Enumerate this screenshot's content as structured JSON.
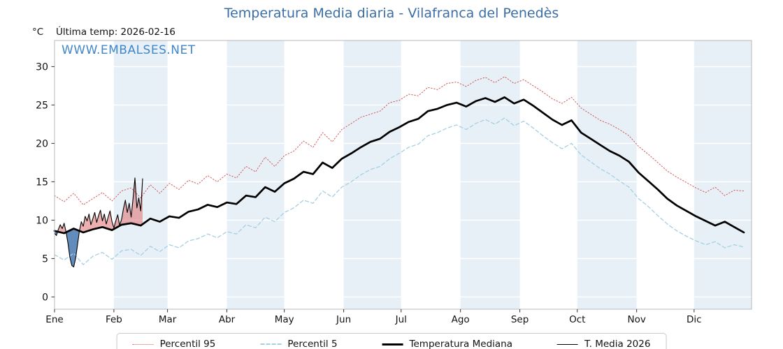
{
  "page": {
    "title": "Temperatura Media diaria - Vilafranca del Penedès",
    "title_color": "#3b6ea5",
    "unit_label": "°C",
    "last_temp_label": "Última temp: 2026-02-16",
    "watermark": "WWW.EMBALSES.NET",
    "watermark_color": "#3f87c9"
  },
  "chart_data": {
    "type": "line",
    "title": "Temperatura Media diaria - Vilafranca del Penedès",
    "xlabel": "",
    "ylabel": "°C",
    "ylim": [
      0,
      30
    ],
    "y_ticks": [
      0,
      5,
      10,
      15,
      20,
      25,
      30
    ],
    "x_tick_labels": [
      "Ene",
      "Feb",
      "Mar",
      "Abr",
      "May",
      "Jun",
      "Jul",
      "Ago",
      "Sep",
      "Oct",
      "Nov",
      "Dic"
    ],
    "month_start_days": [
      1,
      32,
      60,
      91,
      121,
      152,
      182,
      213,
      244,
      274,
      305,
      335
    ],
    "grid": true,
    "legend_position": "bottom",
    "band_color": "#e8f0f7",
    "fill_above_color": "rgba(220,95,95,0.5)",
    "fill_below_color": "rgba(70,120,175,0.85)",
    "series": [
      {
        "name": "percentil_95",
        "label": "Percentil 95",
        "color": "#d05a5a",
        "style": "dotted",
        "days": [
          1,
          6,
          11,
          16,
          21,
          26,
          31,
          36,
          41,
          46,
          51,
          56,
          61,
          66,
          71,
          76,
          81,
          86,
          91,
          96,
          101,
          106,
          111,
          116,
          121,
          126,
          131,
          136,
          141,
          146,
          151,
          156,
          161,
          166,
          171,
          176,
          181,
          186,
          191,
          196,
          201,
          206,
          211,
          216,
          221,
          226,
          231,
          236,
          241,
          246,
          251,
          256,
          261,
          266,
          271,
          276,
          281,
          286,
          291,
          296,
          301,
          306,
          311,
          316,
          321,
          326,
          331,
          336,
          341,
          346,
          351,
          356,
          361
        ],
        "values": [
          13.2,
          12.4,
          13.5,
          12.0,
          12.8,
          13.6,
          12.5,
          13.8,
          14.2,
          12.9,
          14.6,
          13.5,
          14.8,
          14.0,
          15.2,
          14.7,
          15.8,
          15.0,
          16.0,
          15.5,
          17.0,
          16.3,
          18.2,
          17.0,
          18.4,
          19.0,
          20.3,
          19.5,
          21.4,
          20.2,
          21.8,
          22.6,
          23.4,
          23.8,
          24.2,
          25.3,
          25.6,
          26.4,
          26.2,
          27.3,
          27.0,
          27.8,
          28.0,
          27.4,
          28.2,
          28.6,
          27.9,
          28.7,
          27.8,
          28.3,
          27.5,
          26.7,
          25.8,
          25.2,
          26.0,
          24.6,
          23.8,
          23.0,
          22.5,
          21.8,
          21.0,
          19.6,
          18.6,
          17.5,
          16.4,
          15.6,
          14.9,
          14.2,
          13.6,
          14.3,
          13.2,
          13.9,
          13.8
        ]
      },
      {
        "name": "percentil_5",
        "label": "Percentil 5",
        "color": "#a5cfe3",
        "style": "dashed",
        "days": [
          1,
          6,
          11,
          16,
          21,
          26,
          31,
          36,
          41,
          46,
          51,
          56,
          61,
          66,
          71,
          76,
          81,
          86,
          91,
          96,
          101,
          106,
          111,
          116,
          121,
          126,
          131,
          136,
          141,
          146,
          151,
          156,
          161,
          166,
          171,
          176,
          181,
          186,
          191,
          196,
          201,
          206,
          211,
          216,
          221,
          226,
          231,
          236,
          241,
          246,
          251,
          256,
          261,
          266,
          271,
          276,
          281,
          286,
          291,
          296,
          301,
          306,
          311,
          316,
          321,
          326,
          331,
          336,
          341,
          346,
          351,
          356,
          361
        ],
        "values": [
          5.5,
          4.8,
          5.7,
          4.2,
          5.3,
          5.8,
          4.9,
          6.0,
          6.2,
          5.4,
          6.6,
          5.9,
          6.8,
          6.4,
          7.3,
          7.6,
          8.2,
          7.7,
          8.5,
          8.2,
          9.4,
          9.0,
          10.4,
          9.8,
          11.0,
          11.6,
          12.6,
          12.2,
          13.8,
          13.0,
          14.3,
          15.0,
          15.9,
          16.6,
          17.0,
          18.0,
          18.7,
          19.5,
          19.9,
          21.0,
          21.4,
          22.0,
          22.4,
          21.8,
          22.6,
          23.1,
          22.5,
          23.3,
          22.3,
          22.9,
          22.0,
          21.0,
          20.1,
          19.3,
          20.0,
          18.5,
          17.6,
          16.7,
          16.0,
          15.1,
          14.3,
          12.8,
          11.8,
          10.6,
          9.5,
          8.6,
          7.9,
          7.3,
          6.8,
          7.2,
          6.4,
          6.8,
          6.5
        ]
      },
      {
        "name": "temperatura_mediana",
        "label": "Temperatura Mediana",
        "color": "#000000",
        "style": "solid-thick",
        "days": [
          1,
          6,
          11,
          16,
          21,
          26,
          31,
          36,
          41,
          46,
          51,
          56,
          61,
          66,
          71,
          76,
          81,
          86,
          91,
          96,
          101,
          106,
          111,
          116,
          121,
          126,
          131,
          136,
          141,
          146,
          151,
          156,
          161,
          166,
          171,
          176,
          181,
          186,
          191,
          196,
          201,
          206,
          211,
          216,
          221,
          226,
          231,
          236,
          241,
          246,
          251,
          256,
          261,
          266,
          271,
          276,
          281,
          286,
          291,
          296,
          301,
          306,
          311,
          316,
          321,
          326,
          331,
          336,
          341,
          346,
          351,
          356,
          361
        ],
        "values": [
          8.6,
          8.3,
          8.9,
          8.4,
          8.8,
          9.1,
          8.7,
          9.4,
          9.6,
          9.3,
          10.2,
          9.8,
          10.5,
          10.3,
          11.1,
          11.4,
          12.0,
          11.7,
          12.3,
          12.1,
          13.2,
          13.0,
          14.3,
          13.7,
          14.8,
          15.4,
          16.3,
          16.0,
          17.5,
          16.8,
          18.0,
          18.7,
          19.5,
          20.2,
          20.6,
          21.5,
          22.1,
          22.8,
          23.2,
          24.2,
          24.5,
          25.0,
          25.3,
          24.8,
          25.5,
          25.9,
          25.4,
          26.0,
          25.2,
          25.7,
          24.9,
          24.0,
          23.1,
          22.4,
          23.0,
          21.4,
          20.6,
          19.8,
          19.0,
          18.4,
          17.6,
          16.2,
          15.1,
          14.0,
          12.8,
          11.9,
          11.2,
          10.5,
          9.9,
          9.3,
          9.8,
          9.1,
          8.4
        ]
      },
      {
        "name": "t_media_2026",
        "label": "T. Media 2026",
        "color": "#000000",
        "style": "solid-thin",
        "days": [
          1,
          2,
          3,
          4,
          5,
          6,
          7,
          8,
          9,
          10,
          11,
          12,
          13,
          14,
          15,
          16,
          17,
          18,
          19,
          20,
          21,
          22,
          23,
          24,
          25,
          26,
          27,
          28,
          29,
          30,
          31,
          32,
          33,
          34,
          35,
          36,
          37,
          38,
          39,
          40,
          41,
          42,
          43,
          44,
          45,
          46,
          47
        ],
        "values": [
          8.3,
          8.0,
          8.8,
          9.4,
          8.9,
          9.6,
          8.5,
          7.0,
          5.2,
          4.1,
          3.9,
          5.0,
          6.8,
          8.6,
          9.8,
          9.2,
          10.5,
          9.9,
          10.8,
          9.4,
          10.2,
          11.0,
          9.7,
          10.6,
          11.3,
          9.9,
          10.8,
          9.5,
          10.4,
          11.2,
          9.8,
          9.0,
          9.9,
          10.7,
          9.3,
          10.1,
          11.5,
          12.6,
          11.0,
          12.2,
          10.4,
          12.8,
          15.5,
          11.6,
          12.9,
          11.2,
          15.4
        ]
      }
    ]
  }
}
